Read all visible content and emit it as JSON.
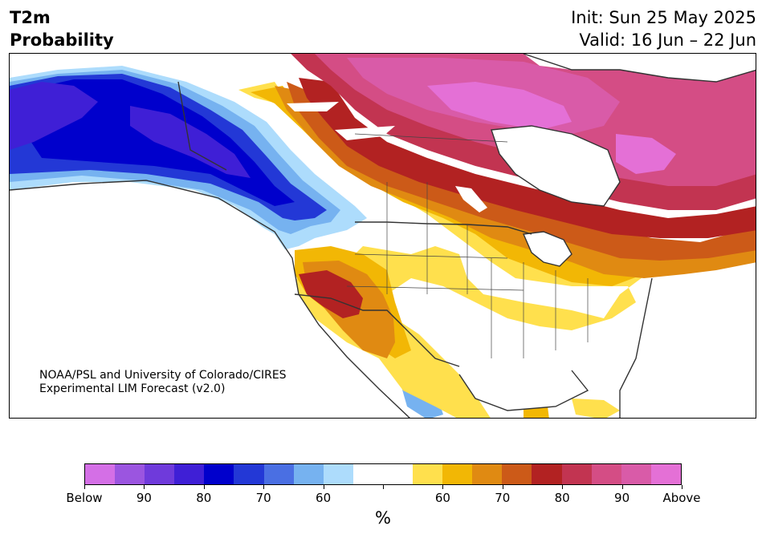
{
  "header": {
    "variable": "T2m",
    "product": "Probability",
    "init": "Init: Sun 25 May 2025",
    "valid": "Valid: 16 Jun – 22 Jun"
  },
  "credit": {
    "line1": "NOAA/PSL and University of Colorado/CIRES",
    "line2": "Experimental LIM Forecast (v2.0)"
  },
  "colorbar": {
    "unit": "%",
    "colors": [
      "#d46fe6",
      "#9b55e0",
      "#6f3adb",
      "#3f1fd6",
      "#0000cc",
      "#2338d6",
      "#4a6fe3",
      "#76b2f0",
      "#addcfc",
      "#ffffff",
      "#ffffff",
      "#ffe04d",
      "#f2b705",
      "#e08a12",
      "#cc5a18",
      "#b22222",
      "#c23451",
      "#d44d85",
      "#d95ba8",
      "#e470d6"
    ],
    "labels": [
      "Below",
      "90",
      "80",
      "70",
      "60",
      "",
      "60",
      "70",
      "80",
      "90",
      "Above"
    ]
  },
  "map": {
    "region": "North America",
    "colors": {
      "below_90": "#3f1fd6",
      "below_80": "#0000cc",
      "below_70": "#2338d6",
      "below_60": "#76b2f0",
      "below_55": "#addcfc",
      "above_55": "#ffe04d",
      "above_60": "#f2b705",
      "above_65": "#e08a12",
      "above_70": "#cc5a18",
      "above_75": "#b22222",
      "above_80": "#c23451",
      "above_85": "#d44d85",
      "above_90": "#d95ba8",
      "above_95": "#e470d6",
      "land_outline": "#333333",
      "water": "#ffffff"
    }
  }
}
